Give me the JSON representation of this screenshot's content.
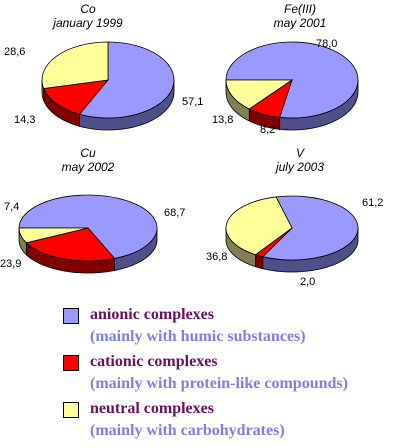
{
  "chart_data": [
    {
      "type": "pie",
      "title": "Co",
      "subtitle": "january 1999",
      "categories": [
        "anionic complexes",
        "cationic complexes",
        "neutral complexes"
      ],
      "values": [
        57.1,
        14.3,
        28.6
      ],
      "value_labels": [
        "57,1",
        "14,3",
        "28,6"
      ]
    },
    {
      "type": "pie",
      "title": "Fe(III)",
      "subtitle": "may 2001",
      "categories": [
        "anionic complexes",
        "cationic complexes",
        "neutral complexes"
      ],
      "values": [
        78.0,
        8.2,
        13.8
      ],
      "value_labels": [
        "78,0",
        "8,2",
        "13,8"
      ]
    },
    {
      "type": "pie",
      "title": "Cu",
      "subtitle": "may 2002",
      "categories": [
        "anionic complexes",
        "cationic complexes",
        "neutral complexes"
      ],
      "values": [
        68.7,
        23.9,
        7.4
      ],
      "value_labels": [
        "68,7",
        "23,9",
        "7,4"
      ]
    },
    {
      "type": "pie",
      "title": "V",
      "subtitle": "july 2003",
      "categories": [
        "anionic complexes",
        "cationic complexes",
        "neutral complexes"
      ],
      "values": [
        61.2,
        2.0,
        36.8
      ],
      "value_labels": [
        "61,2",
        "2,0",
        "36,8"
      ]
    }
  ],
  "legend": {
    "items": [
      {
        "label": "anionic complexes",
        "sublabel": "(mainly with humic substances)",
        "color": "#9999ff"
      },
      {
        "label": "cationic complexes",
        "sublabel": "(mainly with protein-like compounds)",
        "color": "#ff0000"
      },
      {
        "label": "neutral complexes",
        "sublabel": "(mainly with carbohydrates)",
        "color": "#ffff99"
      }
    ]
  },
  "colors": {
    "anionic_side": "#4f4f8a",
    "cationic_side": "#800000",
    "neutral_side": "#7f7f52"
  }
}
